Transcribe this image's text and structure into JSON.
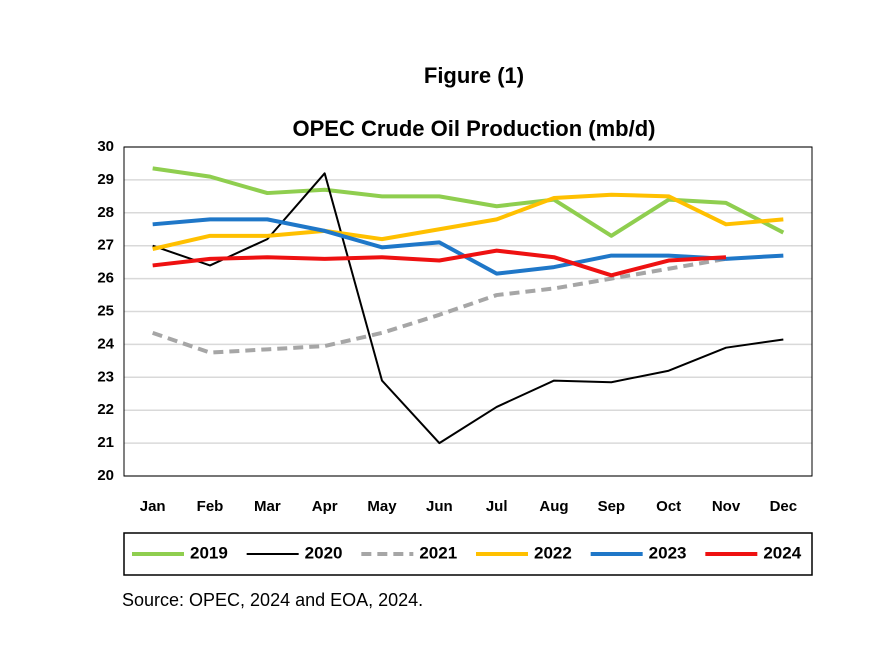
{
  "chart_data": {
    "type": "line",
    "title": "Figure (1)",
    "subtitle": "OPEC Crude Oil Production (mb/d)",
    "source": "Source:  OPEC, 2024 and EOA, 2024.",
    "categories": [
      "Jan",
      "Feb",
      "Mar",
      "Apr",
      "May",
      "Jun",
      "Jul",
      "Aug",
      "Sep",
      "Oct",
      "Nov",
      "Dec"
    ],
    "ylim": [
      20,
      30
    ],
    "yticks": [
      20,
      21,
      22,
      23,
      24,
      25,
      26,
      27,
      28,
      29,
      30
    ],
    "grid": true,
    "legend": "bottom",
    "series": [
      {
        "name": "2019",
        "color": "#8fce4f",
        "values": [
          29.35,
          29.1,
          28.6,
          28.7,
          28.5,
          28.5,
          28.2,
          28.4,
          27.3,
          28.4,
          28.3,
          27.4
        ]
      },
      {
        "name": "2020",
        "color": "#000000",
        "values": [
          27.0,
          26.4,
          27.2,
          29.2,
          22.9,
          21.0,
          22.1,
          22.9,
          22.85,
          23.2,
          23.9,
          24.15
        ]
      },
      {
        "name": "2021",
        "color": "#a6a6a6",
        "dashed": true,
        "values": [
          24.35,
          23.75,
          23.85,
          23.95,
          24.35,
          24.9,
          25.5,
          25.7,
          26.0,
          26.3,
          26.6,
          null
        ]
      },
      {
        "name": "2022",
        "color": "#ffc000",
        "values": [
          26.9,
          27.3,
          27.3,
          27.45,
          27.2,
          27.5,
          27.8,
          28.45,
          28.55,
          28.5,
          27.65,
          27.8
        ]
      },
      {
        "name": "2023",
        "color": "#1f77c8",
        "values": [
          27.65,
          27.8,
          27.8,
          27.45,
          26.95,
          27.1,
          26.15,
          26.35,
          26.7,
          26.7,
          26.6,
          26.7
        ]
      },
      {
        "name": "2024",
        "color": "#ee1111",
        "values": [
          26.4,
          26.6,
          26.65,
          26.6,
          26.65,
          26.55,
          26.85,
          26.65,
          26.1,
          26.55,
          26.65,
          null
        ]
      }
    ]
  }
}
